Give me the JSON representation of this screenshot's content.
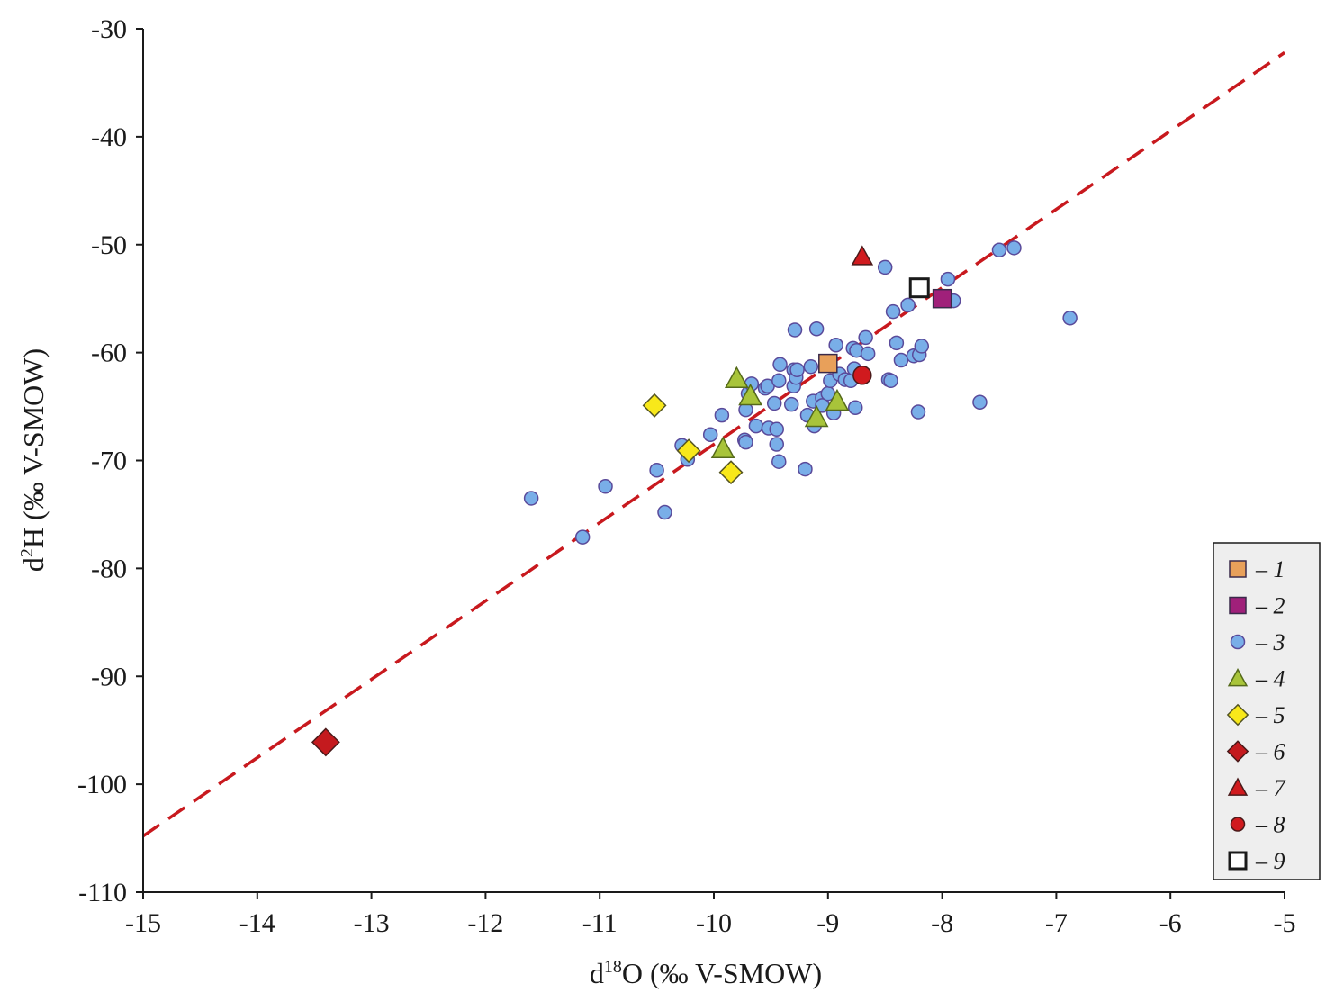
{
  "chart_data": {
    "type": "scatter",
    "xlabel": "d18O (‰ V-SMOW)",
    "xlabel_parts": {
      "pre": "d",
      "sup": "18",
      "post": "O (‰ V-SMOW)"
    },
    "ylabel": "d2H (‰ V-SMOW)",
    "ylabel_parts": {
      "pre": "d",
      "sup": "2",
      "post": "H (‰ V-SMOW)"
    },
    "xlim": [
      -15,
      -5
    ],
    "ylim": [
      -110,
      -30
    ],
    "xticks": [
      -15,
      -14,
      -13,
      -12,
      -11,
      -10,
      -9,
      -8,
      -7,
      -6,
      -5
    ],
    "yticks": [
      -30,
      -40,
      -50,
      -60,
      -70,
      -80,
      -90,
      -100,
      -110
    ],
    "grid": false,
    "legend_position": "bottom-right",
    "reference_line": {
      "style": "dashed",
      "color": "#c8191e",
      "points": [
        [
          -15,
          -104.8
        ],
        [
          -5,
          -32.2
        ]
      ]
    },
    "series": [
      {
        "name": "– 1",
        "marker": "square",
        "color": "#e8a05a",
        "stroke": "#3a2a4a",
        "points": [
          [
            -9.0,
            -61.0
          ]
        ]
      },
      {
        "name": "– 2",
        "marker": "square",
        "color": "#a0207a",
        "stroke": "#3a2a4a",
        "points": [
          [
            -8.0,
            -55.0
          ]
        ]
      },
      {
        "name": "– 3",
        "marker": "circle",
        "color": "#79aee8",
        "stroke": "#5a4a9a",
        "points": [
          [
            -11.6,
            -73.5
          ],
          [
            -11.15,
            -77.1
          ],
          [
            -10.95,
            -72.4
          ],
          [
            -10.5,
            -70.9
          ],
          [
            -10.43,
            -74.8
          ],
          [
            -10.28,
            -68.6
          ],
          [
            -10.23,
            -69.9
          ],
          [
            -10.03,
            -67.6
          ],
          [
            -9.93,
            -65.8
          ],
          [
            -9.73,
            -68.1
          ],
          [
            -9.72,
            -68.3
          ],
          [
            -9.72,
            -65.3
          ],
          [
            -9.7,
            -63.8
          ],
          [
            -9.67,
            -62.9
          ],
          [
            -9.63,
            -66.8
          ],
          [
            -9.55,
            -63.3
          ],
          [
            -9.53,
            -63.1
          ],
          [
            -9.52,
            -67.0
          ],
          [
            -9.47,
            -64.7
          ],
          [
            -9.45,
            -67.1
          ],
          [
            -9.45,
            -68.5
          ],
          [
            -9.43,
            -70.1
          ],
          [
            -9.43,
            -62.6
          ],
          [
            -9.42,
            -61.1
          ],
          [
            -9.32,
            -64.8
          ],
          [
            -9.3,
            -61.6
          ],
          [
            -9.3,
            -63.1
          ],
          [
            -9.29,
            -57.9
          ],
          [
            -9.28,
            -62.3
          ],
          [
            -9.27,
            -61.6
          ],
          [
            -9.2,
            -70.8
          ],
          [
            -9.18,
            -65.8
          ],
          [
            -9.15,
            -61.3
          ],
          [
            -9.13,
            -64.5
          ],
          [
            -9.12,
            -66.8
          ],
          [
            -9.1,
            -57.8
          ],
          [
            -9.05,
            -64.2
          ],
          [
            -9.05,
            -64.9
          ],
          [
            -9.0,
            -63.8
          ],
          [
            -8.98,
            -62.6
          ],
          [
            -8.95,
            -65.6
          ],
          [
            -8.93,
            -59.3
          ],
          [
            -8.9,
            -62.0
          ],
          [
            -8.85,
            -62.5
          ],
          [
            -8.8,
            -62.6
          ],
          [
            -8.78,
            -59.6
          ],
          [
            -8.77,
            -61.5
          ],
          [
            -8.76,
            -65.1
          ],
          [
            -8.75,
            -59.8
          ],
          [
            -8.67,
            -58.6
          ],
          [
            -8.65,
            -60.1
          ],
          [
            -8.5,
            -52.1
          ],
          [
            -8.47,
            -62.5
          ],
          [
            -8.45,
            -62.6
          ],
          [
            -8.43,
            -56.2
          ],
          [
            -8.4,
            -59.1
          ],
          [
            -8.36,
            -60.7
          ],
          [
            -8.3,
            -55.6
          ],
          [
            -8.25,
            -60.3
          ],
          [
            -8.21,
            -65.5
          ],
          [
            -8.2,
            -60.2
          ],
          [
            -8.18,
            -59.4
          ],
          [
            -7.95,
            -53.2
          ],
          [
            -7.9,
            -55.2
          ],
          [
            -7.67,
            -64.6
          ],
          [
            -7.5,
            -50.5
          ],
          [
            -7.37,
            -50.3
          ],
          [
            -6.88,
            -56.8
          ]
        ]
      },
      {
        "name": "– 4",
        "marker": "triangle",
        "color": "#a8c43a",
        "stroke": "#556a1a",
        "points": [
          [
            -9.8,
            -62.4
          ],
          [
            -9.68,
            -64.0
          ],
          [
            -9.92,
            -68.9
          ],
          [
            -9.1,
            -66.0
          ],
          [
            -8.92,
            -64.5
          ]
        ]
      },
      {
        "name": "– 5",
        "marker": "diamond",
        "color": "#f8e81a",
        "stroke": "#555522",
        "points": [
          [
            -10.52,
            -64.9
          ],
          [
            -10.22,
            -69.1
          ],
          [
            -9.85,
            -71.1
          ]
        ]
      },
      {
        "name": "– 6",
        "marker": "diamond",
        "color": "#c41a1e",
        "stroke": "#4a1a1a",
        "points": [
          [
            -13.4,
            -96.1
          ]
        ]
      },
      {
        "name": "– 7",
        "marker": "triangle",
        "color": "#d01a1e",
        "stroke": "#4a1a1a",
        "points": [
          [
            -8.7,
            -51.1
          ]
        ]
      },
      {
        "name": "– 8",
        "marker": "circle",
        "color": "#d01a1e",
        "stroke": "#4a1a1a",
        "points": [
          [
            -8.7,
            -62.1
          ]
        ]
      },
      {
        "name": "– 9",
        "marker": "square",
        "color": "#ffffff",
        "stroke": "#1a1a1a",
        "points": [
          [
            -8.2,
            -54.0
          ]
        ]
      }
    ]
  }
}
